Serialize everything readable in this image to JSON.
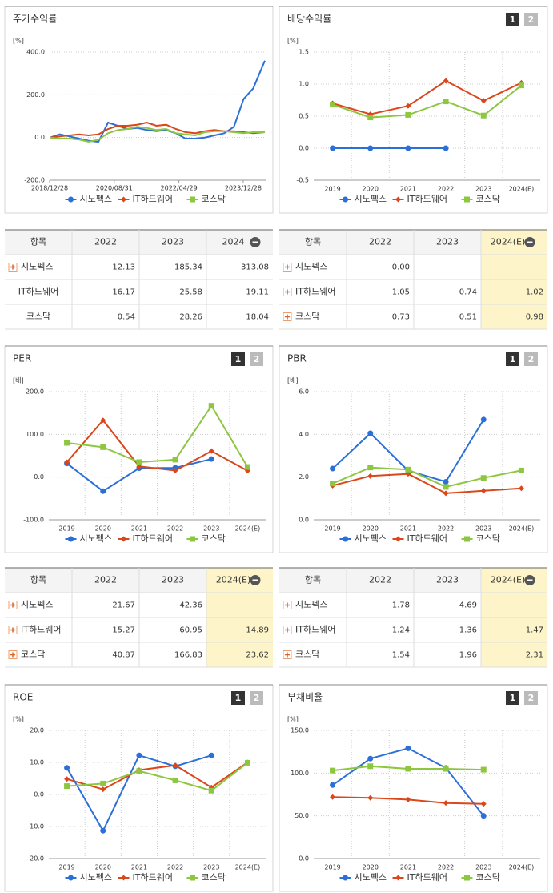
{
  "chart_data": [
    {
      "type": "line",
      "title": "주가수익률",
      "unit": "[%]",
      "x": [
        2019,
        2019.25,
        2019.5,
        2019.75,
        2020,
        2020.25,
        2020.5,
        2020.75,
        2021,
        2021.25,
        2021.5,
        2021.75,
        2022,
        2022.25,
        2022.5,
        2022.75,
        2023,
        2023.25,
        2023.5,
        2023.75,
        2024,
        2024.25,
        2024.55
      ],
      "xlim": [
        2018.99,
        2024.57
      ],
      "xticks": [
        {
          "value": 2018.99,
          "label": "2018/12/28"
        },
        {
          "value": 2020.66,
          "label": "2020/08/31"
        },
        {
          "value": 2022.33,
          "label": "2022/04/29"
        },
        {
          "value": 2023.99,
          "label": "2023/12/28"
        }
      ],
      "ylim": [
        -200,
        400
      ],
      "yticks": [
        {
          "value": -200,
          "label": "-200.0"
        },
        {
          "value": 0,
          "label": "0.0"
        },
        {
          "value": 200,
          "label": "200.0"
        },
        {
          "value": 400,
          "label": "400.0"
        }
      ],
      "grid": true,
      "series": [
        {
          "name": "시노펙스",
          "color": "#2b6fd8",
          "values": [
            0,
            15,
            5,
            -5,
            -15,
            -20,
            70,
            55,
            40,
            45,
            35,
            30,
            35,
            20,
            -5,
            -5,
            0,
            10,
            20,
            50,
            180,
            230,
            360
          ]
        },
        {
          "name": "IT하드웨어",
          "color": "#d9471b",
          "values": [
            0,
            5,
            10,
            15,
            10,
            15,
            40,
            55,
            55,
            60,
            70,
            55,
            60,
            40,
            25,
            20,
            30,
            35,
            30,
            30,
            25,
            20,
            25
          ]
        },
        {
          "name": "코스닥",
          "color": "#8dc63f",
          "values": [
            0,
            -5,
            -5,
            -10,
            -20,
            -10,
            20,
            35,
            40,
            50,
            45,
            35,
            40,
            20,
            15,
            10,
            25,
            30,
            30,
            25,
            20,
            25,
            25
          ]
        }
      ]
    },
    {
      "type": "line",
      "title": "배당수익률",
      "unit": "[%]",
      "buttons": [
        "1",
        "2"
      ],
      "categories": [
        "2019",
        "2020",
        "2021",
        "2022",
        "2023",
        "2024(E)"
      ],
      "ylim": [
        -0.5,
        1.5
      ],
      "yticks": [
        {
          "value": -0.5,
          "label": "-0.5"
        },
        {
          "value": 0,
          "label": "0.0"
        },
        {
          "value": 0.5,
          "label": "0.5"
        },
        {
          "value": 1,
          "label": "1.0"
        },
        {
          "value": 1.5,
          "label": "1.5"
        }
      ],
      "grid": true,
      "series": [
        {
          "name": "시노펙스",
          "color": "#2b6fd8",
          "values": [
            0,
            0,
            0,
            0,
            null,
            null
          ]
        },
        {
          "name": "IT하드웨어",
          "color": "#d9471b",
          "values": [
            0.7,
            0.53,
            0.66,
            1.05,
            0.74,
            1.02
          ]
        },
        {
          "name": "코스닥",
          "color": "#8dc63f",
          "values": [
            0.68,
            0.48,
            0.52,
            0.73,
            0.51,
            0.98
          ]
        }
      ]
    },
    {
      "type": "line",
      "title": "PER",
      "unit": "[배]",
      "buttons": [
        "1",
        "2"
      ],
      "categories": [
        "2019",
        "2020",
        "2021",
        "2022",
        "2023",
        "2024(E)"
      ],
      "ylim": [
        -100,
        200
      ],
      "yticks": [
        {
          "value": -100,
          "label": "-100.0"
        },
        {
          "value": 0,
          "label": "0.0"
        },
        {
          "value": 100,
          "label": "100.0"
        },
        {
          "value": 200,
          "label": "200.0"
        }
      ],
      "grid": true,
      "series": [
        {
          "name": "시노펙스",
          "color": "#2b6fd8",
          "values": [
            32,
            -33,
            21,
            21.67,
            42.36,
            null
          ]
        },
        {
          "name": "IT하드웨어",
          "color": "#d9471b",
          "values": [
            35,
            133,
            25,
            15.27,
            60.95,
            14.89
          ]
        },
        {
          "name": "코스닥",
          "color": "#8dc63f",
          "values": [
            80,
            70,
            35,
            40.87,
            166.83,
            23.62
          ]
        }
      ]
    },
    {
      "type": "line",
      "title": "PBR",
      "unit": "[배]",
      "buttons": [
        "1",
        "2"
      ],
      "categories": [
        "2019",
        "2020",
        "2021",
        "2022",
        "2023",
        "2024(E)"
      ],
      "ylim": [
        0,
        6
      ],
      "yticks": [
        {
          "value": 0,
          "label": "0.0"
        },
        {
          "value": 2,
          "label": "2.0"
        },
        {
          "value": 4,
          "label": "4.0"
        },
        {
          "value": 6,
          "label": "6.0"
        }
      ],
      "grid": true,
      "series": [
        {
          "name": "시노펙스",
          "color": "#2b6fd8",
          "values": [
            2.4,
            4.05,
            2.3,
            1.78,
            4.69,
            null
          ]
        },
        {
          "name": "IT하드웨어",
          "color": "#d9471b",
          "values": [
            1.6,
            2.05,
            2.15,
            1.24,
            1.36,
            1.47
          ]
        },
        {
          "name": "코스닥",
          "color": "#8dc63f",
          "values": [
            1.7,
            2.45,
            2.35,
            1.54,
            1.96,
            2.31
          ]
        }
      ]
    },
    {
      "type": "line",
      "title": "ROE",
      "unit": "[%]",
      "buttons": [
        "1",
        "2"
      ],
      "categories": [
        "2019",
        "2020",
        "2021",
        "2022",
        "2023",
        "2024(E)"
      ],
      "ylim": [
        -20,
        20
      ],
      "yticks": [
        {
          "value": -20,
          "label": "-20.0"
        },
        {
          "value": -10,
          "label": "-10.0"
        },
        {
          "value": 0,
          "label": "0.0"
        },
        {
          "value": 10,
          "label": "10.0"
        },
        {
          "value": 20,
          "label": "20.0"
        }
      ],
      "grid": true,
      "series": [
        {
          "name": "시노펙스",
          "color": "#2b6fd8",
          "values": [
            8.3,
            -11.3,
            12.2,
            8.8,
            12.2,
            null
          ]
        },
        {
          "name": "IT하드웨어",
          "color": "#d9471b",
          "values": [
            4.8,
            1.6,
            7.6,
            9.1,
            2.2,
            10.0
          ]
        },
        {
          "name": "코스닥",
          "color": "#8dc63f",
          "values": [
            2.6,
            3.4,
            7.3,
            4.4,
            1.2,
            9.9
          ]
        }
      ]
    },
    {
      "type": "line",
      "title": "부채비율",
      "unit": "[%]",
      "buttons": [
        "1",
        "2"
      ],
      "categories": [
        "2019",
        "2020",
        "2021",
        "2022",
        "2023",
        "2024(E)"
      ],
      "ylim": [
        0,
        150
      ],
      "yticks": [
        {
          "value": 0,
          "label": "0.0"
        },
        {
          "value": 50,
          "label": "50.0"
        },
        {
          "value": 100,
          "label": "100.0"
        },
        {
          "value": 150,
          "label": "150.0"
        }
      ],
      "grid": true,
      "series": [
        {
          "name": "시노펙스",
          "color": "#2b6fd8",
          "values": [
            86,
            117,
            129,
            106,
            50,
            null
          ]
        },
        {
          "name": "IT하드웨어",
          "color": "#d9471b",
          "values": [
            72,
            71,
            69,
            65,
            64,
            null
          ]
        },
        {
          "name": "코스닥",
          "color": "#8dc63f",
          "values": [
            103,
            108,
            105,
            105,
            104,
            null
          ]
        }
      ]
    }
  ],
  "tables": [
    {
      "headers": [
        "항목",
        "2022",
        "2023",
        "2024"
      ],
      "highlight_last_column": false,
      "rows": [
        {
          "name": "시노펙스",
          "expandable": true,
          "values": [
            "-12.13",
            "185.34",
            "313.08"
          ]
        },
        {
          "name": "IT하드웨어",
          "expandable": false,
          "values": [
            "16.17",
            "25.58",
            "19.11"
          ]
        },
        {
          "name": "코스닥",
          "expandable": false,
          "values": [
            "0.54",
            "28.26",
            "18.04"
          ]
        }
      ]
    },
    {
      "headers": [
        "항목",
        "2022",
        "2023",
        "2024(E)"
      ],
      "highlight_last_column": true,
      "rows": [
        {
          "name": "시노펙스",
          "expandable": true,
          "values": [
            "0.00",
            null,
            null
          ]
        },
        {
          "name": "IT하드웨어",
          "expandable": true,
          "values": [
            "1.05",
            "0.74",
            "1.02"
          ]
        },
        {
          "name": "코스닥",
          "expandable": true,
          "values": [
            "0.73",
            "0.51",
            "0.98"
          ]
        }
      ]
    },
    {
      "headers": [
        "항목",
        "2022",
        "2023",
        "2024(E)"
      ],
      "highlight_last_column": true,
      "rows": [
        {
          "name": "시노펙스",
          "expandable": true,
          "values": [
            "21.67",
            "42.36",
            null
          ]
        },
        {
          "name": "IT하드웨어",
          "expandable": true,
          "values": [
            "15.27",
            "60.95",
            "14.89"
          ]
        },
        {
          "name": "코스닥",
          "expandable": true,
          "values": [
            "40.87",
            "166.83",
            "23.62"
          ]
        }
      ]
    },
    {
      "headers": [
        "항목",
        "2022",
        "2023",
        "2024(E)"
      ],
      "highlight_last_column": true,
      "rows": [
        {
          "name": "시노펙스",
          "expandable": true,
          "values": [
            "1.78",
            "4.69",
            null
          ]
        },
        {
          "name": "IT하드웨어",
          "expandable": true,
          "values": [
            "1.24",
            "1.36",
            "1.47"
          ]
        },
        {
          "name": "코스닥",
          "expandable": true,
          "values": [
            "1.54",
            "1.96",
            "2.31"
          ]
        }
      ]
    }
  ]
}
